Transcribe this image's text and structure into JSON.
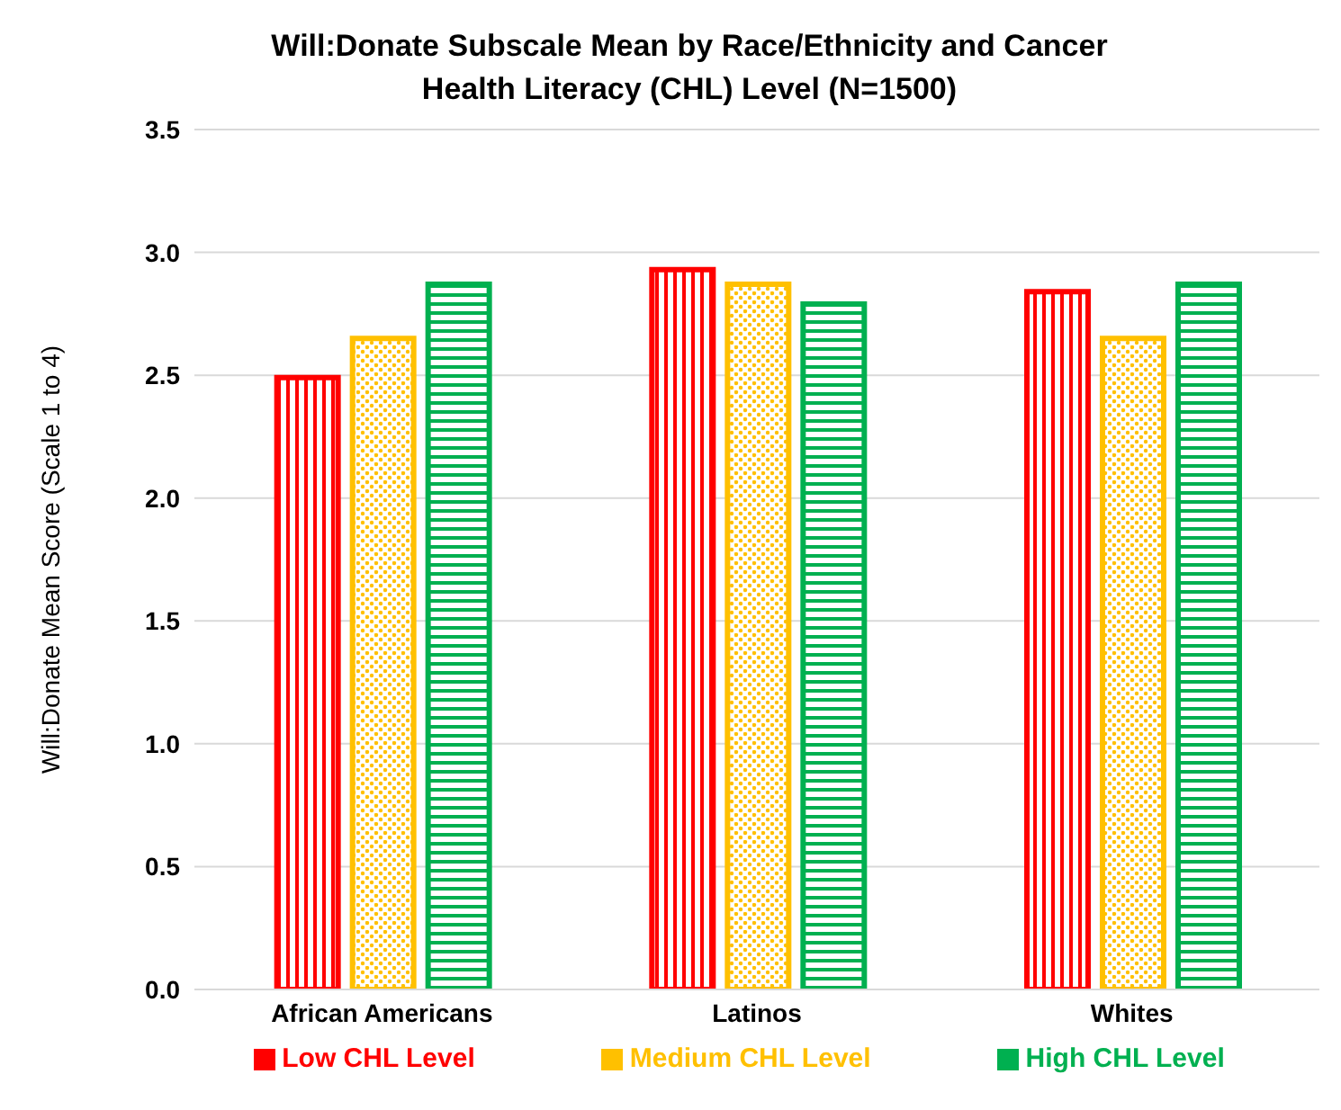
{
  "chart_data": {
    "type": "bar",
    "title": "Will:Donate Subscale Mean by Race/Ethnicity and Cancer Health Literacy (CHL) Level (N=1500)",
    "ylabel": "Will:Donate Mean Score (Scale 1 to 4)",
    "categories": [
      "African Americans",
      "Latinos",
      "Whites"
    ],
    "series": [
      {
        "name": "Low CHL Level",
        "color": "#ff0000",
        "values": [
          2.49,
          2.93,
          2.84
        ]
      },
      {
        "name": "Medium CHL Level",
        "color": "#ffc000",
        "values": [
          2.65,
          2.87,
          2.65
        ]
      },
      {
        "name": "High CHL Level",
        "color": "#00b050",
        "values": [
          2.87,
          2.79,
          2.87
        ]
      }
    ],
    "ylim": [
      0,
      3.5
    ],
    "yticks": [
      {
        "value": 0,
        "label": "0.0"
      },
      0.5,
      {
        "value": 1,
        "label": "1.0"
      },
      1.5,
      {
        "value": 2,
        "label": "2.0"
      },
      2.5,
      {
        "value": 3,
        "label": "3.0"
      },
      3.5
    ],
    "grid": "y",
    "legend": "bottom"
  }
}
